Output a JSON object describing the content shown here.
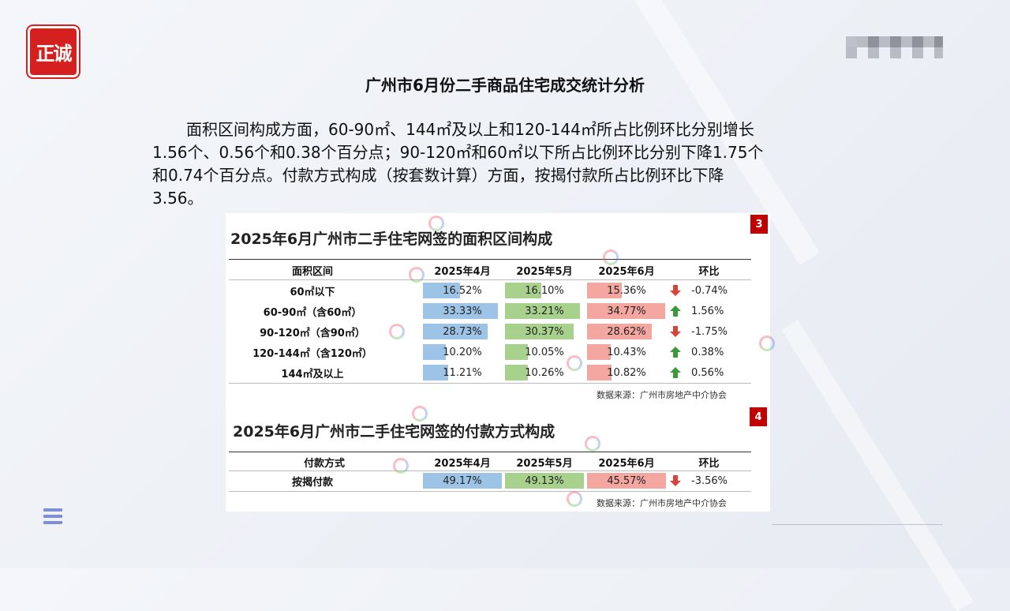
{
  "logo": {
    "text": "正诚"
  },
  "title": "广州市6月份二手商品住宅成交统计分析",
  "paragraph": [
    "面积区间构成方面，60-90㎡、144㎡及以上和120-144㎡所占比例环比分别增长",
    "1.56个、0.56个和0.38个百分点；90-120㎡和60㎡以下所占比例环比分别下降1.75个",
    "和0.74个百分点。付款方式构成（按套数计算）方面，按揭付款所占比例环比下降",
    "3.56。"
  ],
  "colors": {
    "apr": "#9dc3e6",
    "may": "#a9d18e",
    "jun": "#f4a6a0",
    "up": "#3a9a3a",
    "down": "#d9433a",
    "badge": "#c00000"
  },
  "table1": {
    "badge": "3",
    "title": "2025年6月广州市二手住宅网签的面积区间构成",
    "headers": [
      "面积区间",
      "2025年4月",
      "2025年5月",
      "2025年6月",
      "环比"
    ],
    "rows": [
      {
        "label": "60㎡以下",
        "apr": "16.52%",
        "may": "16.10%",
        "jun": "15.36%",
        "chg": "-0.74%",
        "dir": "down",
        "apr_v": 16.52,
        "may_v": 16.1,
        "jun_v": 15.36
      },
      {
        "label": "60-90㎡（含60㎡）",
        "apr": "33.33%",
        "may": "33.21%",
        "jun": "34.77%",
        "chg": "1.56%",
        "dir": "up",
        "apr_v": 33.33,
        "may_v": 33.21,
        "jun_v": 34.77
      },
      {
        "label": "90-120㎡（含90㎡）",
        "apr": "28.73%",
        "may": "30.37%",
        "jun": "28.62%",
        "chg": "-1.75%",
        "dir": "down",
        "apr_v": 28.73,
        "may_v": 30.37,
        "jun_v": 28.62
      },
      {
        "label": "120-144㎡（含120㎡）",
        "apr": "10.20%",
        "may": "10.05%",
        "jun": "10.43%",
        "chg": "0.38%",
        "dir": "up",
        "apr_v": 10.2,
        "may_v": 10.05,
        "jun_v": 10.43
      },
      {
        "label": "144㎡及以上",
        "apr": "11.21%",
        "may": "10.26%",
        "jun": "10.82%",
        "chg": "0.56%",
        "dir": "up",
        "apr_v": 11.21,
        "may_v": 10.26,
        "jun_v": 10.82
      }
    ],
    "source": "数据来源：广州市房地产中介协会"
  },
  "table2": {
    "badge": "4",
    "title": "2025年6月广州市二手住宅网签的付款方式构成",
    "headers": [
      "付款方式",
      "2025年4月",
      "2025年5月",
      "2025年6月",
      "环比"
    ],
    "rows": [
      {
        "label": "按揭付款",
        "apr": "49.17%",
        "may": "49.13%",
        "jun": "45.57%",
        "chg": "-3.56%",
        "dir": "down",
        "apr_v": 49.17,
        "may_v": 49.13,
        "jun_v": 45.57
      }
    ],
    "source": "数据来源：广州市房地产中介协会"
  }
}
